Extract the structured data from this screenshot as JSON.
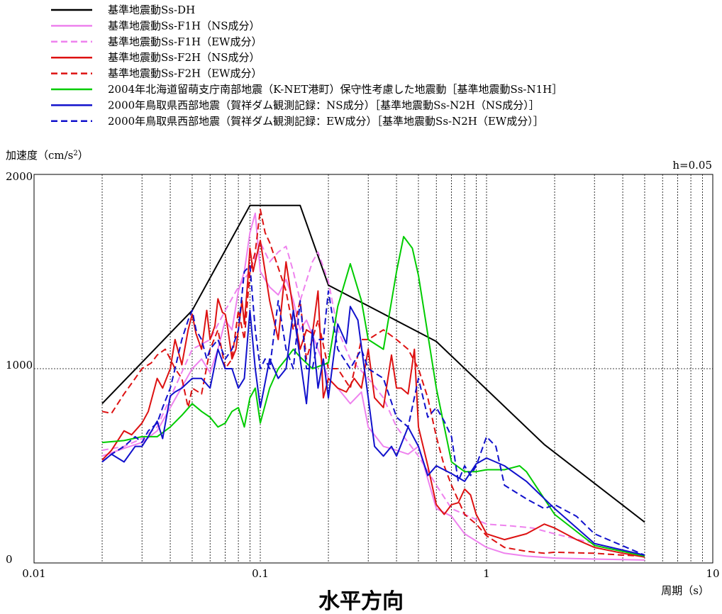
{
  "chart_data": {
    "type": "line",
    "ylabel": "加速度（cm/s",
    "ylabel_sup": "2",
    "ylabel_close": "）",
    "xlabel": "周期（s）",
    "damping_label": "h=0.05",
    "caption": "水平方向",
    "x_scale": "log",
    "xlim": [
      0.01,
      10
    ],
    "ylim": [
      0,
      2000
    ],
    "x_tick_labels": [
      {
        "value": 0.01,
        "label": "0.01"
      },
      {
        "value": 0.1,
        "label": "0.1"
      },
      {
        "value": 1,
        "label": "1"
      },
      {
        "value": 10,
        "label": "10"
      }
    ],
    "y_tick_labels": [
      {
        "value": 0,
        "label": "0"
      },
      {
        "value": 1000,
        "label": "1000"
      },
      {
        "value": 2000,
        "label": "2000"
      }
    ],
    "grid": {
      "x_minor_log": true,
      "y_major": [
        1000
      ]
    },
    "legend_position": "top-left, above plot",
    "series": [
      {
        "name": "基準地震動Ss-DH",
        "color": "#000000",
        "dash": "solid",
        "x": [
          0.02,
          0.05,
          0.09,
          0.15,
          0.2,
          0.6,
          1.8,
          5.0
        ],
        "y": [
          820,
          1300,
          1840,
          1840,
          1430,
          1140,
          610,
          210
        ]
      },
      {
        "name": "基準地震動Ss-F1H（NS成分）",
        "color": "#ee82ee",
        "dash": "solid",
        "x": [
          0.02,
          0.025,
          0.03,
          0.035,
          0.04,
          0.05,
          0.055,
          0.06,
          0.065,
          0.07,
          0.075,
          0.08,
          0.085,
          0.09,
          0.095,
          0.1,
          0.11,
          0.12,
          0.13,
          0.14,
          0.15,
          0.16,
          0.18,
          0.2,
          0.22,
          0.25,
          0.28,
          0.3,
          0.35,
          0.4,
          0.45,
          0.5,
          0.6,
          0.7,
          0.8,
          1.0,
          1.2,
          1.5,
          2.0,
          3.0,
          5.0
        ],
        "y": [
          550,
          590,
          620,
          680,
          800,
          1000,
          1050,
          980,
          1100,
          1250,
          1200,
          1400,
          1500,
          1700,
          1800,
          1500,
          1420,
          1380,
          1460,
          1350,
          1200,
          1250,
          1100,
          950,
          900,
          820,
          880,
          700,
          600,
          580,
          560,
          600,
          280,
          240,
          150,
          80,
          50,
          35,
          25,
          20,
          15
        ]
      },
      {
        "name": "基準地震動Ss-F1H（EW成分）",
        "color": "#ee82ee",
        "dash": "dashed",
        "x": [
          0.02,
          0.025,
          0.03,
          0.035,
          0.04,
          0.05,
          0.06,
          0.07,
          0.08,
          0.09,
          0.1,
          0.11,
          0.12,
          0.13,
          0.14,
          0.15,
          0.17,
          0.18,
          0.2,
          0.22,
          0.25,
          0.3,
          0.35,
          0.4,
          0.5,
          0.6,
          0.7,
          0.8,
          1.0,
          1.3,
          1.6,
          2.0,
          3.0,
          5.0
        ],
        "y": [
          580,
          600,
          640,
          700,
          850,
          1100,
          1150,
          1300,
          1420,
          1500,
          1650,
          1550,
          1600,
          1630,
          1500,
          1350,
          1550,
          1600,
          1450,
          1200,
          1050,
          950,
          850,
          700,
          550,
          400,
          280,
          250,
          200,
          190,
          180,
          150,
          100,
          40
        ]
      },
      {
        "name": "基準地震動Ss-F2H（NS成分）",
        "color": "#dd1111",
        "dash": "solid",
        "x": [
          0.02,
          0.022,
          0.025,
          0.027,
          0.03,
          0.032,
          0.035,
          0.037,
          0.04,
          0.042,
          0.045,
          0.048,
          0.05,
          0.052,
          0.055,
          0.058,
          0.06,
          0.063,
          0.065,
          0.068,
          0.07,
          0.072,
          0.075,
          0.078,
          0.08,
          0.083,
          0.085,
          0.088,
          0.09,
          0.093,
          0.095,
          0.1,
          0.11,
          0.12,
          0.13,
          0.14,
          0.15,
          0.16,
          0.17,
          0.18,
          0.19,
          0.2,
          0.22,
          0.24,
          0.26,
          0.28,
          0.3,
          0.32,
          0.35,
          0.38,
          0.4,
          0.42,
          0.45,
          0.48,
          0.5,
          0.55,
          0.6,
          0.65,
          0.7,
          0.75,
          0.8,
          0.85,
          0.9,
          1.0,
          1.2,
          1.5,
          1.8,
          2.0,
          2.5,
          3.0,
          4.0,
          5.0
        ],
        "y": [
          530,
          580,
          680,
          660,
          720,
          780,
          950,
          900,
          1000,
          1150,
          1020,
          1200,
          1280,
          1180,
          1100,
          1300,
          1150,
          1220,
          1360,
          1290,
          1280,
          1200,
          1050,
          1100,
          1200,
          1350,
          1230,
          1450,
          1620,
          1500,
          1550,
          1660,
          1350,
          1150,
          1550,
          1300,
          1100,
          1200,
          1180,
          1400,
          850,
          950,
          900,
          880,
          950,
          900,
          1100,
          850,
          800,
          1070,
          900,
          900,
          870,
          1100,
          700,
          500,
          300,
          250,
          300,
          310,
          380,
          350,
          250,
          150,
          120,
          150,
          200,
          180,
          120,
          80,
          50,
          30
        ]
      },
      {
        "name": "基準地震動Ss-F2H（EW成分）",
        "color": "#dd1111",
        "dash": "dashed",
        "x": [
          0.02,
          0.022,
          0.025,
          0.028,
          0.03,
          0.033,
          0.035,
          0.038,
          0.04,
          0.042,
          0.045,
          0.048,
          0.05,
          0.055,
          0.06,
          0.065,
          0.07,
          0.075,
          0.08,
          0.085,
          0.09,
          0.095,
          0.1,
          0.105,
          0.11,
          0.12,
          0.13,
          0.14,
          0.15,
          0.16,
          0.18,
          0.2,
          0.22,
          0.25,
          0.28,
          0.3,
          0.35,
          0.4,
          0.45,
          0.5,
          0.55,
          0.6,
          0.65,
          0.7,
          0.8,
          0.9,
          1.0,
          1.2,
          1.5,
          1.8,
          2.0,
          3.0,
          4.0,
          5.0
        ],
        "y": [
          780,
          770,
          870,
          950,
          1000,
          1030,
          1070,
          1100,
          1050,
          1000,
          950,
          800,
          900,
          870,
          1100,
          1200,
          1000,
          1050,
          1300,
          1150,
          1500,
          1600,
          1820,
          1700,
          1650,
          1520,
          1400,
          1200,
          1350,
          1050,
          1250,
          1000,
          1000,
          900,
          1150,
          1150,
          1200,
          1150,
          1100,
          1000,
          850,
          650,
          500,
          400,
          250,
          200,
          140,
          80,
          60,
          50,
          55,
          50,
          40,
          35
        ]
      },
      {
        "name": "2004年北海道留萌支庁南部地震（K-NET港町）保守性考慮した地震動［基準地震動Ss-N1H］",
        "color": "#00cc00",
        "dash": "solid",
        "x": [
          0.02,
          0.025,
          0.03,
          0.035,
          0.04,
          0.045,
          0.05,
          0.055,
          0.06,
          0.065,
          0.07,
          0.075,
          0.08,
          0.085,
          0.09,
          0.095,
          0.1,
          0.11,
          0.12,
          0.13,
          0.14,
          0.15,
          0.17,
          0.2,
          0.22,
          0.25,
          0.28,
          0.3,
          0.35,
          0.4,
          0.43,
          0.47,
          0.5,
          0.6,
          0.7,
          0.8,
          0.9,
          1.0,
          1.2,
          1.3,
          1.4,
          1.5,
          2.0,
          3.0,
          5.0
        ],
        "y": [
          620,
          630,
          650,
          650,
          700,
          760,
          820,
          780,
          750,
          700,
          720,
          780,
          800,
          700,
          850,
          900,
          720,
          900,
          1000,
          1050,
          1100,
          1060,
          1000,
          1030,
          1320,
          1540,
          1350,
          1150,
          1100,
          1500,
          1680,
          1620,
          1480,
          900,
          520,
          470,
          470,
          480,
          480,
          490,
          500,
          470,
          250,
          90,
          35
        ]
      },
      {
        "name": "2000年鳥取県西部地震（賀祥ダム観測記録：NS成分）［基準地震動Ss-N2H（NS成分）］",
        "color": "#1111cc",
        "dash": "solid",
        "x": [
          0.02,
          0.022,
          0.025,
          0.028,
          0.03,
          0.032,
          0.035,
          0.037,
          0.04,
          0.042,
          0.045,
          0.05,
          0.055,
          0.06,
          0.065,
          0.07,
          0.075,
          0.08,
          0.085,
          0.09,
          0.095,
          0.1,
          0.11,
          0.12,
          0.13,
          0.14,
          0.15,
          0.16,
          0.17,
          0.18,
          0.19,
          0.2,
          0.22,
          0.24,
          0.25,
          0.27,
          0.3,
          0.32,
          0.35,
          0.38,
          0.4,
          0.45,
          0.5,
          0.55,
          0.6,
          0.7,
          0.8,
          0.9,
          1.0,
          1.2,
          1.5,
          2.0,
          3.0,
          5.0
        ],
        "y": [
          520,
          560,
          520,
          600,
          600,
          650,
          730,
          640,
          860,
          880,
          900,
          950,
          950,
          900,
          1100,
          1000,
          1000,
          900,
          950,
          1300,
          1000,
          800,
          1050,
          950,
          1000,
          1300,
          1050,
          820,
          1200,
          900,
          1050,
          850,
          1230,
          1130,
          1320,
          1250,
          850,
          600,
          550,
          600,
          550,
          700,
          600,
          450,
          500,
          460,
          420,
          510,
          540,
          500,
          420,
          280,
          100,
          40
        ]
      },
      {
        "name": "2000年鳥取県西部地震（賀祥ダム観測記録：EW成分）［基準地震動Ss-N2H（EW成分）］",
        "color": "#1111cc",
        "dash": "dashed",
        "x": [
          0.02,
          0.022,
          0.025,
          0.028,
          0.03,
          0.032,
          0.035,
          0.037,
          0.04,
          0.042,
          0.045,
          0.048,
          0.05,
          0.052,
          0.055,
          0.058,
          0.06,
          0.065,
          0.07,
          0.075,
          0.08,
          0.085,
          0.09,
          0.095,
          0.1,
          0.105,
          0.11,
          0.12,
          0.13,
          0.14,
          0.15,
          0.16,
          0.17,
          0.18,
          0.19,
          0.2,
          0.22,
          0.25,
          0.28,
          0.3,
          0.35,
          0.4,
          0.45,
          0.5,
          0.55,
          0.6,
          0.65,
          0.7,
          0.75,
          0.8,
          0.85,
          0.9,
          1.0,
          1.1,
          1.2,
          1.5,
          1.8,
          2.0,
          2.5,
          3.0,
          5.0
        ],
        "y": [
          520,
          560,
          600,
          650,
          620,
          680,
          720,
          800,
          900,
          1000,
          1150,
          1250,
          1300,
          1200,
          1150,
          1050,
          1100,
          1150,
          1050,
          1100,
          1200,
          1500,
          1530,
          1200,
          1000,
          1050,
          1000,
          1350,
          1100,
          1000,
          1350,
          1000,
          1000,
          1150,
          1150,
          1400,
          1100,
          1000,
          1100,
          1000,
          950,
          750,
          700,
          950,
          750,
          800,
          730,
          650,
          420,
          500,
          450,
          500,
          650,
          600,
          400,
          330,
          280,
          300,
          240,
          150,
          40
        ]
      }
    ]
  }
}
